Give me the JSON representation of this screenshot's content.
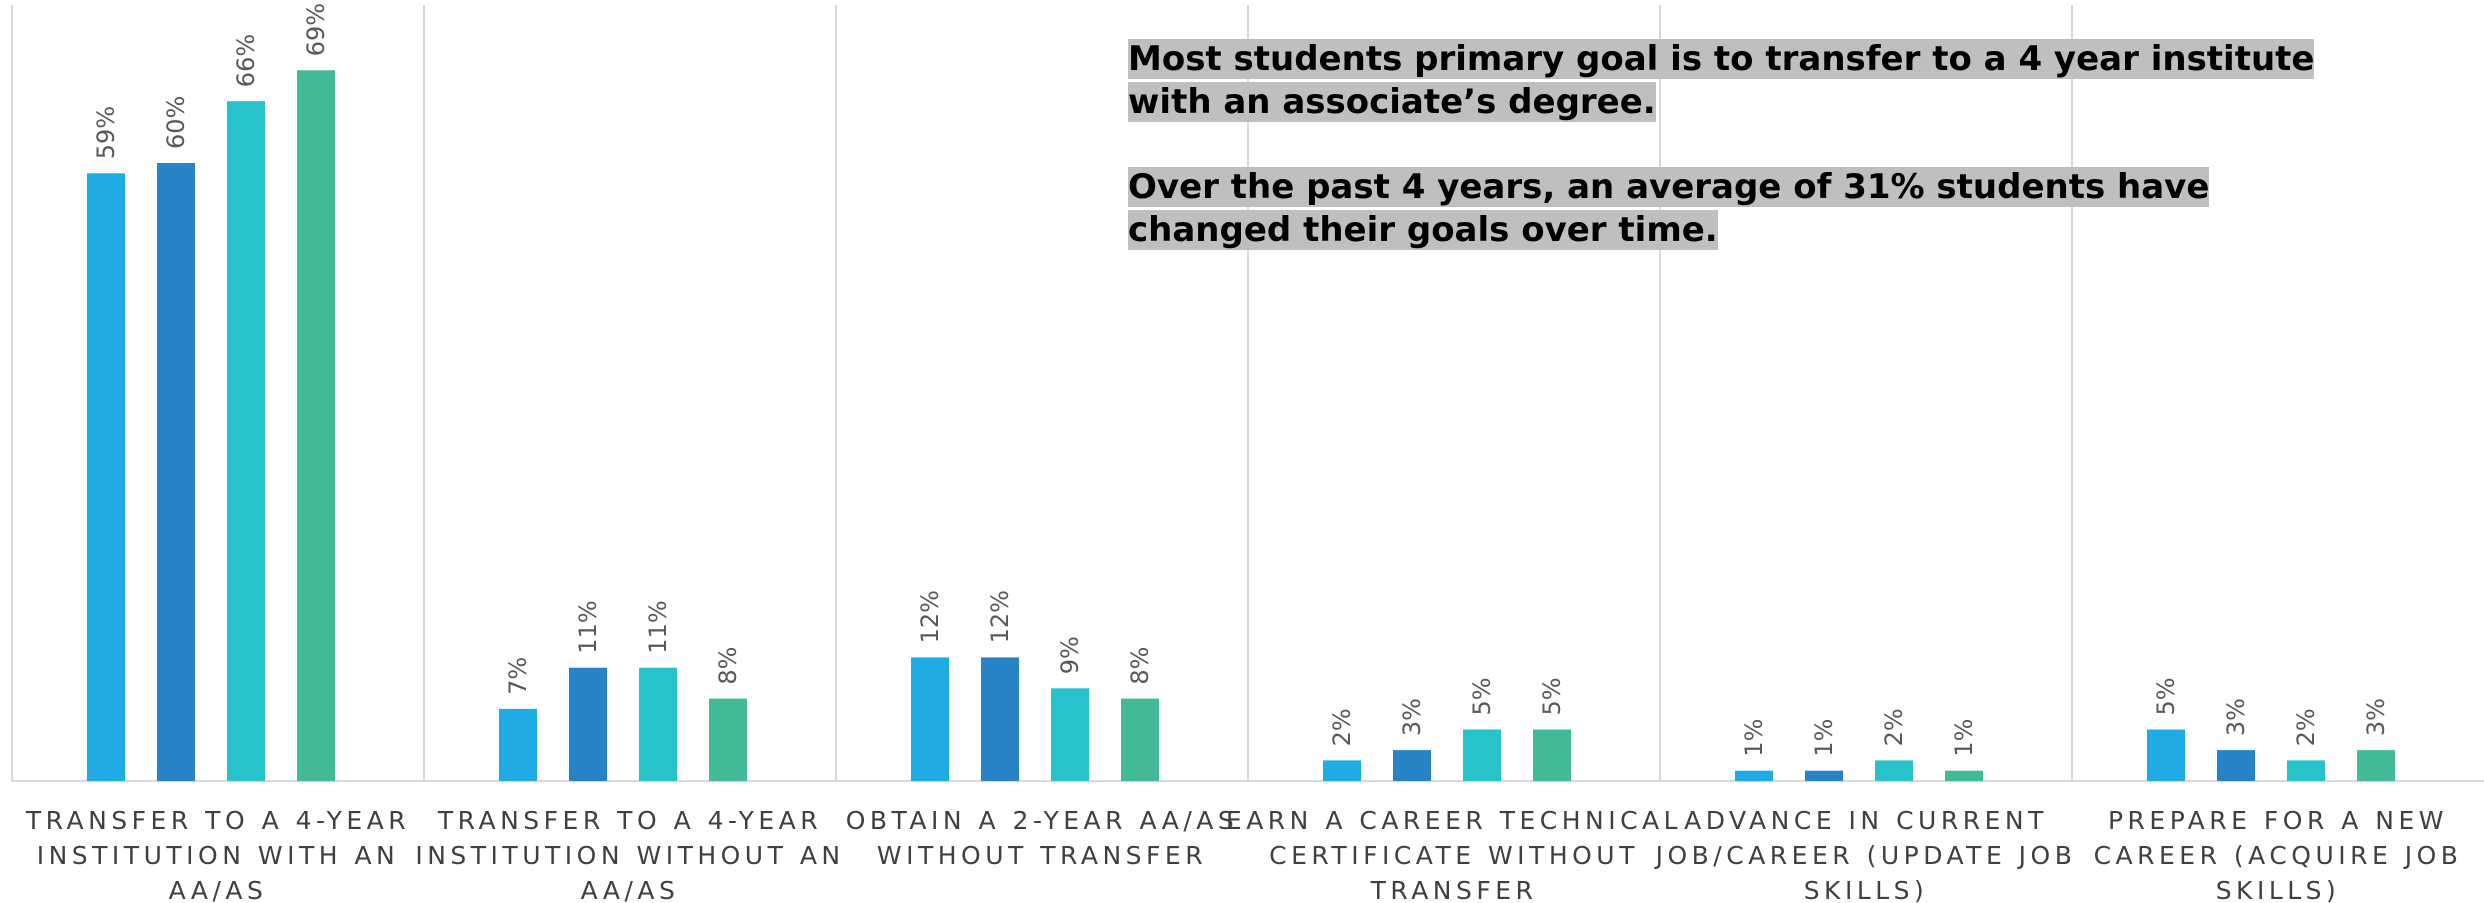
{
  "chart_data": {
    "type": "bar",
    "title": "",
    "xlabel": "",
    "ylabel": "",
    "ylim": [
      0,
      70
    ],
    "grid": false,
    "legend": "none",
    "categories": [
      "TRANSFER TO A 4-YEAR INSTITUTION WITH AN AA/AS",
      "TRANSFER TO A 4-YEAR INSTITUTION WITHOUT AN AA/AS",
      "OBTAIN A 2-YEAR AA/AS WITHOUT TRANSFER",
      "EARN A CAREER TECHNICAL CERTIFICATE WITHOUT TRANSFER",
      "ADVANCE IN CURRENT JOB/CAREER (UPDATE JOB SKILLS)",
      "PREPARE FOR A NEW CAREER (ACQUIRE JOB SKILLS)"
    ],
    "category_lines": [
      [
        "TRANSFER TO A 4-YEAR",
        "INSTITUTION WITH AN",
        "AA/AS"
      ],
      [
        "TRANSFER TO A 4-YEAR",
        "INSTITUTION WITHOUT AN",
        "AA/AS"
      ],
      [
        "OBTAIN A 2-YEAR AA/AS",
        "WITHOUT TRANSFER"
      ],
      [
        "EARN A CAREER TECHNICAL",
        "CERTIFICATE WITHOUT",
        "TRANSFER"
      ],
      [
        "ADVANCE IN CURRENT",
        "JOB/CAREER (UPDATE JOB",
        "SKILLS)"
      ],
      [
        "PREPARE FOR A NEW",
        "CAREER (ACQUIRE JOB",
        "SKILLS)"
      ]
    ],
    "series": [
      {
        "color": "#1fabe3",
        "values": [
          59,
          7,
          12,
          2,
          1,
          5
        ],
        "labels": [
          "59%",
          "7%",
          "12%",
          "2%",
          "1%",
          "5%"
        ]
      },
      {
        "color": "#2683c6",
        "values": [
          60,
          11,
          12,
          3,
          1,
          3
        ],
        "labels": [
          "60%",
          "11%",
          "12%",
          "3%",
          "1%",
          "3%"
        ]
      },
      {
        "color": "#27c2ca",
        "values": [
          66,
          11,
          9,
          5,
          2,
          2
        ],
        "labels": [
          "66%",
          "11%",
          "9%",
          "5%",
          "2%",
          "2%"
        ]
      },
      {
        "color": "#42ba97",
        "values": [
          69,
          8,
          8,
          5,
          1,
          3
        ],
        "labels": [
          "69%",
          "8%",
          "8%",
          "5%",
          "1%",
          "3%"
        ]
      }
    ],
    "annotations": [
      "Most students primary goal is to transfer to a 4 year institute with an associate’s degree.",
      "Over the past 4 years, an average of 31% students have changed their goals over time."
    ]
  }
}
